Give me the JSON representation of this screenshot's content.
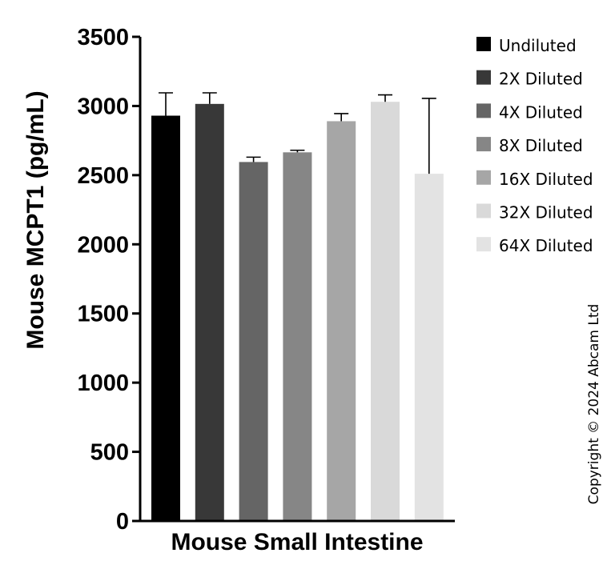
{
  "chart_data": {
    "type": "bar",
    "title": "",
    "xlabel": "Mouse Small Intestine",
    "ylabel": "Mouse MCPT1 (pg/mL)",
    "ylim": [
      0,
      3500
    ],
    "yticks": [
      0,
      500,
      1000,
      1500,
      2000,
      2500,
      3000,
      3500
    ],
    "ytick_labels": [
      "0",
      "500",
      "1000",
      "1500",
      "2000",
      "2500",
      "3000",
      "3500"
    ],
    "grid": false,
    "legend_position": "right",
    "categories": [
      "Undiluted",
      "2X Diluted",
      "4X Diluted",
      "8X Diluted",
      "16X Diluted",
      "32X Diluted",
      "64X Diluted"
    ],
    "values": [
      2930,
      3015,
      2595,
      2665,
      2890,
      3030,
      2510
    ],
    "error_upper": [
      3095,
      3095,
      2630,
      2680,
      2945,
      3080,
      3055
    ],
    "colors": [
      "#000000",
      "#383838",
      "#656565",
      "#868686",
      "#a6a6a6",
      "#d9d9d9",
      "#e3e3e3"
    ]
  },
  "copyright": "Copyright © 2024 Abcam Ltd"
}
